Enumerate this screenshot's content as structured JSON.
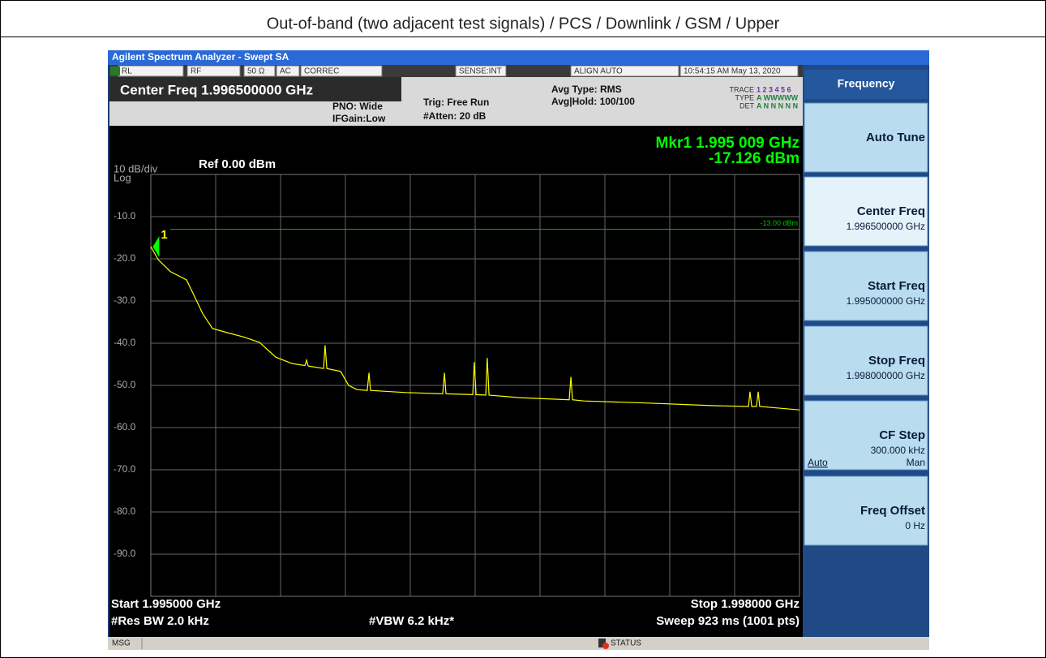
{
  "header": {
    "title": "Out-of-band (two adjacent test signals) / PCS / Downlink / GSM / Upper"
  },
  "analyzer": {
    "title_bar": "Agilent Spectrum Analyzer - Swept SA",
    "status_row": [
      "RL",
      "RF",
      "50 Ω",
      "AC",
      "CORREC",
      "SENSE:INT",
      "ALIGN AUTO",
      "10:54:15 AM May 13, 2020"
    ],
    "center_freq": "Center Freq 1.996500000 GHz",
    "pno": "PNO: Wide",
    "ifgain": "IFGain:Low",
    "trig": "Trig: Free Run",
    "atten": "#Atten: 20 dB",
    "avg_type": "Avg Type: RMS",
    "avg_hold": "Avg|Hold: 100/100",
    "trace_labels": [
      "TRACE",
      "TYPE",
      "DET"
    ],
    "trace_values": [
      "1 2 3 4 5 6",
      "A WWWWW",
      "A N N N N N"
    ],
    "scale": "10 dB/div",
    "scale_type": "Log",
    "ref_level": "Ref 0.00 dBm",
    "marker_freq": "Mkr1 1.995 009 GHz",
    "marker_level": "-17.126 dBm",
    "start": "Start 1.995000 GHz",
    "stop": "Stop 1.998000 GHz",
    "res_bw": "#Res BW 2.0 kHz",
    "vbw": "#VBW 6.2 kHz*",
    "sweep": "Sweep  923 ms (1001 pts)",
    "msg": "MSG",
    "status": "STATUS"
  },
  "softkeys": {
    "menu": "Frequency",
    "keys": [
      {
        "label": "Auto Tune"
      },
      {
        "label": "Center Freq",
        "value": "1.996500000 GHz"
      },
      {
        "label": "Start Freq",
        "value": "1.995000000 GHz"
      },
      {
        "label": "Stop Freq",
        "value": "1.998000000 GHz"
      },
      {
        "label": "CF Step",
        "value": "300.000 kHz",
        "options": [
          "Auto",
          "Man"
        ]
      },
      {
        "label": "Freq Offset",
        "value": "0 Hz"
      }
    ]
  },
  "chart_data": {
    "type": "line",
    "color": "#ffff00",
    "xlim": [
      1.995,
      1.998
    ],
    "ylim": [
      -100,
      0
    ],
    "yticks": [
      {
        "value": -10,
        "label": "-10.0"
      },
      {
        "value": -20,
        "label": "-20.0"
      },
      {
        "value": -30,
        "label": "-30.0"
      },
      {
        "value": -40,
        "label": "-40.0"
      },
      {
        "value": -50,
        "label": "-50.0"
      },
      {
        "value": -60,
        "label": "-60.0"
      },
      {
        "value": -70,
        "label": "-70.0"
      },
      {
        "value": -80,
        "label": "-80.0"
      },
      {
        "value": -90,
        "label": "-90.0"
      }
    ],
    "grid": true,
    "display_line": {
      "value": -13,
      "label": "-13.00 dBm",
      "color": "#00c000"
    },
    "marker": {
      "label": "1",
      "x": 1.995009,
      "value": -17.126,
      "color": "#00ff00"
    },
    "x": [
      1.995,
      1.995034,
      1.99509,
      1.995165,
      1.995203,
      1.99524,
      1.995285,
      1.995353,
      1.995428,
      1.995503,
      1.995578,
      1.995653,
      1.995713,
      1.99572,
      1.995728,
      1.995799,
      1.995806,
      1.995814,
      1.995878,
      1.995915,
      1.995953,
      1.996001,
      1.996009,
      1.996016,
      1.996178,
      1.99635,
      1.996358,
      1.996365,
      1.996489,
      1.996496,
      1.996504,
      1.996549,
      1.996556,
      1.996564,
      1.996703,
      1.996935,
      1.996943,
      1.99695,
      1.997003,
      1.997303,
      1.997603,
      1.997764,
      1.997771,
      1.997779,
      1.997801,
      1.997809,
      1.997816,
      1.998
    ],
    "values": [
      -17.1,
      -20.2,
      -23,
      -25,
      -29,
      -33,
      -36.5,
      -37.5,
      -38.5,
      -39.8,
      -43.3,
      -44.8,
      -45.3,
      -44,
      -45.4,
      -46,
      -40.5,
      -46,
      -46.7,
      -50,
      -51,
      -51.2,
      -47,
      -51.2,
      -51.7,
      -52,
      -47,
      -52,
      -52.2,
      -44.5,
      -52.2,
      -52.3,
      -43.5,
      -52.3,
      -52.9,
      -53.4,
      -48,
      -53.4,
      -53.7,
      -54.2,
      -54.8,
      -55,
      -51.5,
      -55,
      -55,
      -51.5,
      -55,
      -55.8
    ]
  }
}
